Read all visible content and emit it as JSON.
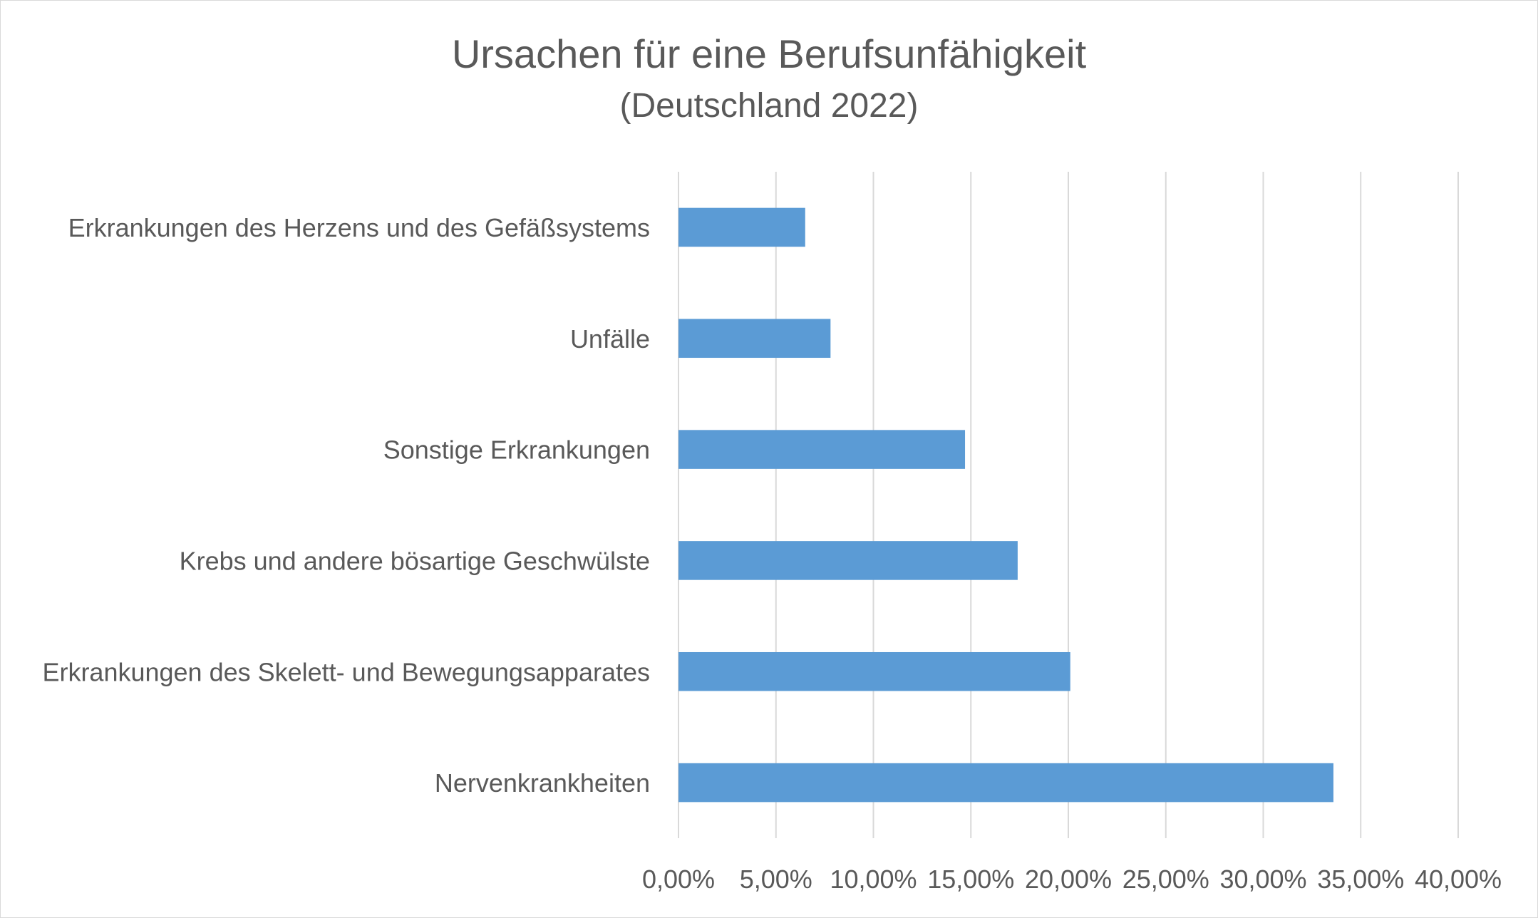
{
  "chart_data": {
    "type": "bar",
    "orientation": "horizontal",
    "title": "Ursachen für eine Berufsunfähigkeit",
    "subtitle": "(Deutschland 2022)",
    "categories": [
      "Erkrankungen des Herzens und des Gefäßsystems",
      "Unfälle",
      "Sonstige Erkrankungen",
      "Krebs und andere bösartige Geschwülste",
      "Erkrankungen des Skelett- und Bewegungsapparates",
      "Nervenkrankheiten"
    ],
    "values": [
      6.5,
      7.8,
      14.7,
      17.4,
      20.1,
      33.6
    ],
    "xlim": [
      0,
      40
    ],
    "xticks": [
      "0,00%",
      "5,00%",
      "10,00%",
      "15,00%",
      "20,00%",
      "25,00%",
      "30,00%",
      "35,00%",
      "40,00%"
    ],
    "grid": true,
    "legend": false,
    "colors": {
      "bar": "#5b9bd5",
      "grid": "#d9d9d9",
      "text": "#595959"
    }
  }
}
